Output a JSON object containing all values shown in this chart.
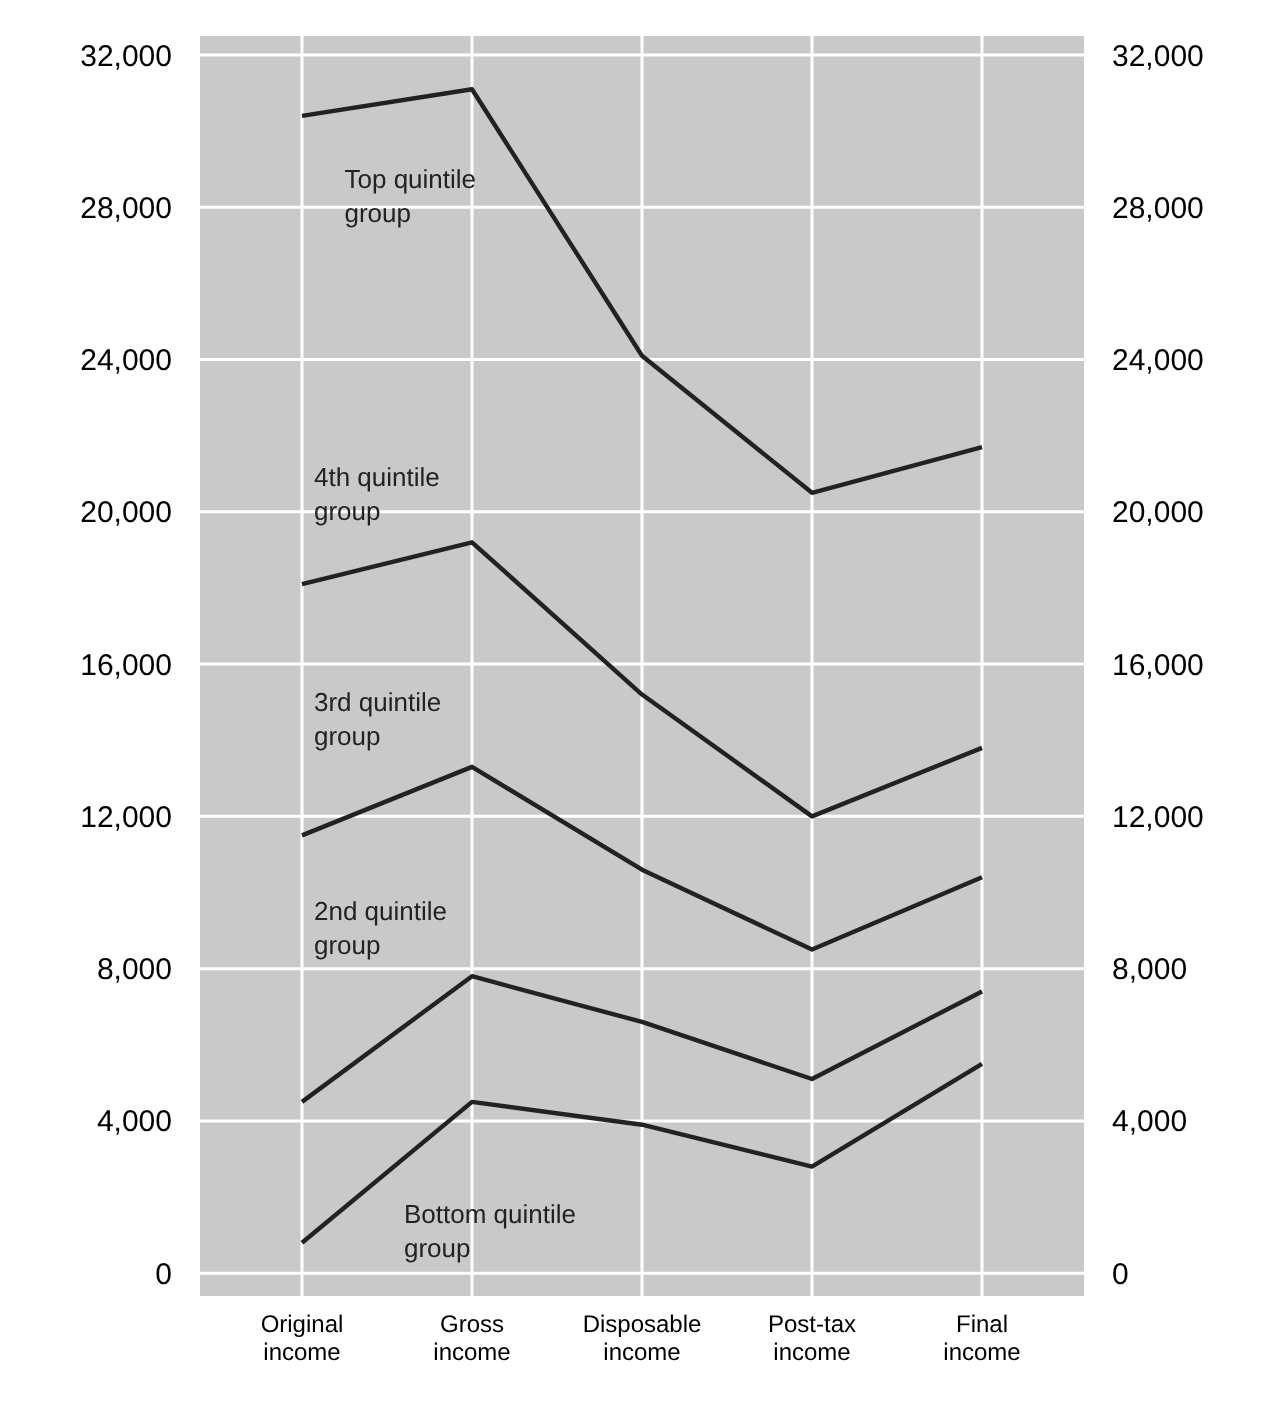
{
  "chart_data": {
    "type": "line",
    "categories": [
      "Original\nincome",
      "Gross\nincome",
      "Disposable\nincome",
      "Post-tax\nincome",
      "Final\nincome"
    ],
    "series": [
      {
        "name": "Top quintile\ngroup",
        "color": "#222222",
        "values": [
          30400,
          31100,
          24100,
          20500,
          21700
        ]
      },
      {
        "name": "4th quintile\ngroup",
        "color": "#222222",
        "values": [
          18100,
          19200,
          15200,
          12000,
          13800
        ]
      },
      {
        "name": "3rd quintile\ngroup",
        "color": "#222222",
        "values": [
          11500,
          13300,
          10600,
          8500,
          10400
        ]
      },
      {
        "name": "2nd quintile\ngroup",
        "color": "#222222",
        "values": [
          4500,
          7800,
          6600,
          5100,
          7400
        ]
      },
      {
        "name": "Bottom quintile\ngroup",
        "color": "#222222",
        "values": [
          800,
          4500,
          3900,
          2800,
          5500
        ]
      }
    ],
    "ylim": [
      -600,
      32500
    ],
    "yticks": [
      {
        "value": 0,
        "label": "0"
      },
      {
        "value": 4000,
        "label": "4,000"
      },
      {
        "value": 8000,
        "label": "8,000"
      },
      {
        "value": 12000,
        "label": "12,000"
      },
      {
        "value": 16000,
        "label": "16,000"
      },
      {
        "value": 20000,
        "label": "20,000"
      },
      {
        "value": 24000,
        "label": "24,000"
      },
      {
        "value": 28000,
        "label": "28,000"
      },
      {
        "value": 32000,
        "label": "32,000"
      }
    ],
    "y2lim": [
      -600,
      32500
    ],
    "y2ticks": [
      {
        "value": 0,
        "label": "0"
      },
      {
        "value": 4000,
        "label": "4,000"
      },
      {
        "value": 8000,
        "label": "8,000"
      },
      {
        "value": 12000,
        "label": "12,000"
      },
      {
        "value": 16000,
        "label": "16,000"
      },
      {
        "value": 20000,
        "label": "20,000"
      },
      {
        "value": 24000,
        "label": "24,000"
      },
      {
        "value": 28000,
        "label": "28,000"
      },
      {
        "value": 32000,
        "label": "32,000"
      }
    ],
    "grid": true,
    "legend": false,
    "marker": "none",
    "line_style": "solid"
  }
}
